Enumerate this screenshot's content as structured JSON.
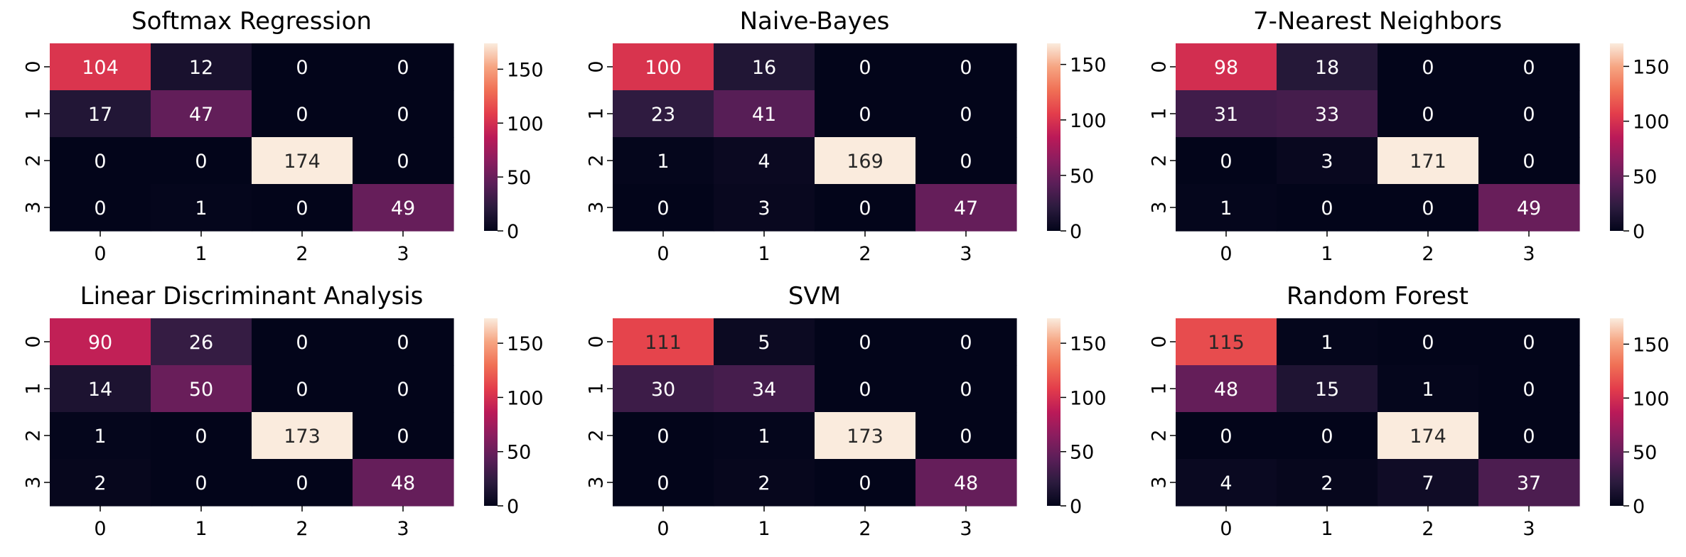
{
  "chart_data": [
    {
      "type": "heatmap",
      "title": "Softmax Regression",
      "x_ticks": [
        "0",
        "1",
        "2",
        "3"
      ],
      "y_ticks": [
        "0",
        "1",
        "2",
        "3"
      ],
      "values": [
        [
          104,
          12,
          0,
          0
        ],
        [
          17,
          47,
          0,
          0
        ],
        [
          0,
          0,
          174,
          0
        ],
        [
          0,
          1,
          0,
          49
        ]
      ],
      "colorbar": {
        "vmin": 0,
        "vmax": 174,
        "ticks": [
          "0",
          "50",
          "100",
          "150"
        ]
      }
    },
    {
      "type": "heatmap",
      "title": "Naive-Bayes",
      "x_ticks": [
        "0",
        "1",
        "2",
        "3"
      ],
      "y_ticks": [
        "0",
        "1",
        "2",
        "3"
      ],
      "values": [
        [
          100,
          16,
          0,
          0
        ],
        [
          23,
          41,
          0,
          0
        ],
        [
          1,
          4,
          169,
          0
        ],
        [
          0,
          3,
          0,
          47
        ]
      ],
      "colorbar": {
        "vmin": 0,
        "vmax": 169,
        "ticks": [
          "0",
          "50",
          "100",
          "150"
        ]
      }
    },
    {
      "type": "heatmap",
      "title": "7-Nearest Neighbors",
      "x_ticks": [
        "0",
        "1",
        "2",
        "3"
      ],
      "y_ticks": [
        "0",
        "1",
        "2",
        "3"
      ],
      "values": [
        [
          98,
          18,
          0,
          0
        ],
        [
          31,
          33,
          0,
          0
        ],
        [
          0,
          3,
          171,
          0
        ],
        [
          1,
          0,
          0,
          49
        ]
      ],
      "colorbar": {
        "vmin": 0,
        "vmax": 171,
        "ticks": [
          "0",
          "50",
          "100",
          "150"
        ]
      }
    },
    {
      "type": "heatmap",
      "title": "Linear Discriminant Analysis",
      "x_ticks": [
        "0",
        "1",
        "2",
        "3"
      ],
      "y_ticks": [
        "0",
        "1",
        "2",
        "3"
      ],
      "values": [
        [
          90,
          26,
          0,
          0
        ],
        [
          14,
          50,
          0,
          0
        ],
        [
          1,
          0,
          173,
          0
        ],
        [
          2,
          0,
          0,
          48
        ]
      ],
      "colorbar": {
        "vmin": 0,
        "vmax": 173,
        "ticks": [
          "0",
          "50",
          "100",
          "150"
        ]
      }
    },
    {
      "type": "heatmap",
      "title": "SVM",
      "x_ticks": [
        "0",
        "1",
        "2",
        "3"
      ],
      "y_ticks": [
        "0",
        "1",
        "2",
        "3"
      ],
      "values": [
        [
          111,
          5,
          0,
          0
        ],
        [
          30,
          34,
          0,
          0
        ],
        [
          0,
          1,
          173,
          0
        ],
        [
          0,
          2,
          0,
          48
        ]
      ],
      "colorbar": {
        "vmin": 0,
        "vmax": 173,
        "ticks": [
          "0",
          "50",
          "100",
          "150"
        ]
      }
    },
    {
      "type": "heatmap",
      "title": "Random Forest",
      "x_ticks": [
        "0",
        "1",
        "2",
        "3"
      ],
      "y_ticks": [
        "0",
        "1",
        "2",
        "3"
      ],
      "values": [
        [
          115,
          1,
          0,
          0
        ],
        [
          48,
          15,
          1,
          0
        ],
        [
          0,
          0,
          174,
          0
        ],
        [
          4,
          2,
          7,
          37
        ]
      ],
      "colorbar": {
        "vmin": 0,
        "vmax": 174,
        "ticks": [
          "0",
          "50",
          "100",
          "150"
        ]
      }
    }
  ],
  "colormap": {
    "name": "rocket",
    "stops": [
      "#03051a",
      "#2b1b3e",
      "#5a1e58",
      "#8b1d5f",
      "#bb1a58",
      "#e33d4b",
      "#f07055",
      "#f6a582",
      "#faebdd"
    ]
  }
}
